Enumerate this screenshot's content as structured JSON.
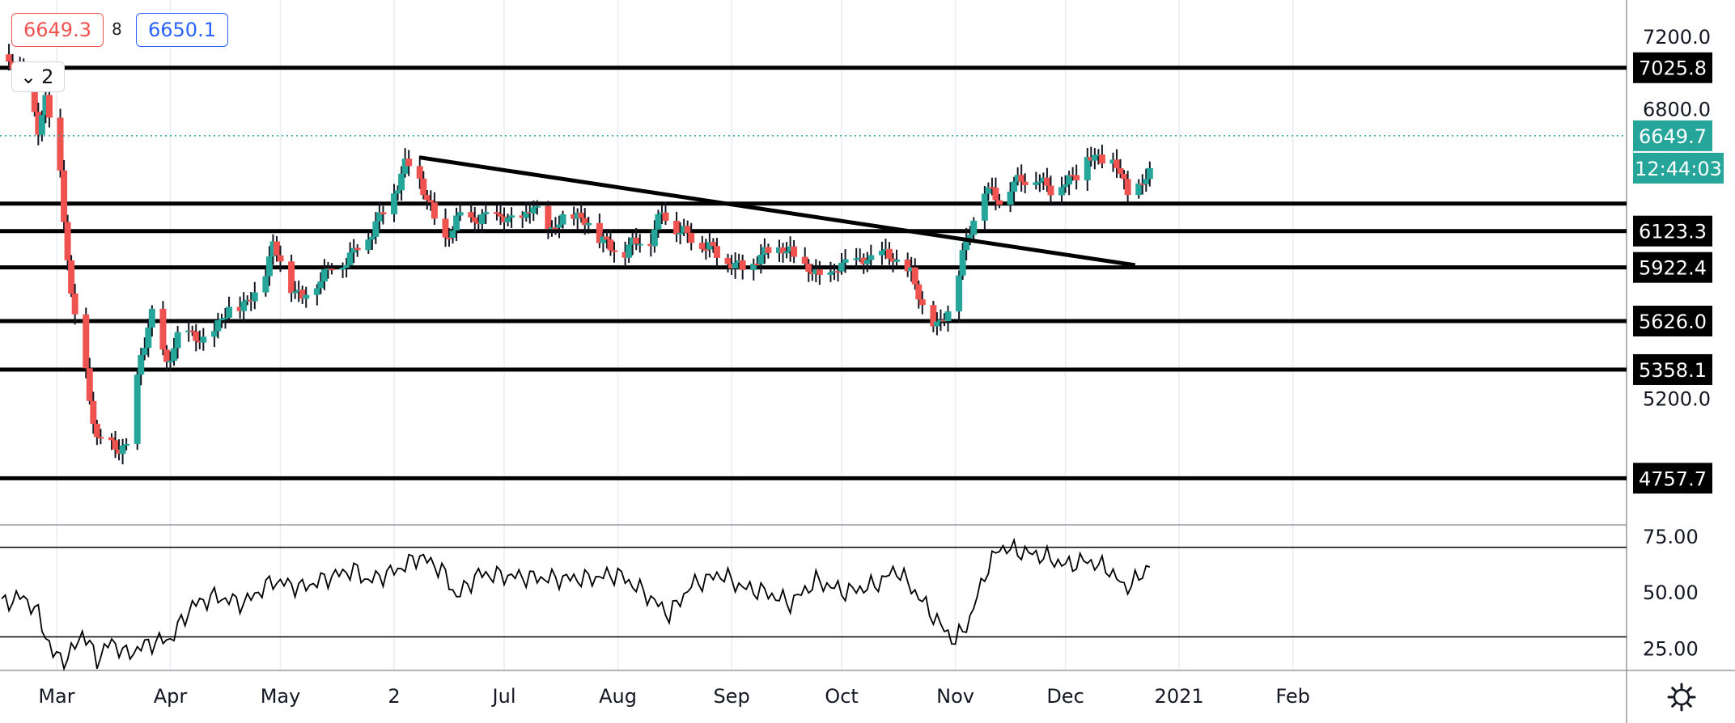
{
  "header": {
    "bid": "6649.3",
    "spread": "8",
    "ask": "6650.1",
    "collapse_label": "2"
  },
  "chart_data": [
    {
      "type": "candlestick",
      "price_axis_labels": [
        "7200.0",
        "6800.0",
        "5200.0"
      ],
      "price_range": [
        4500,
        7400
      ],
      "last_price": "6649.7",
      "countdown": "12:44:03",
      "horizontal_levels": [
        "7025.8",
        "6123.3",
        "5922.4",
        "5626.0",
        "5358.1",
        "4757.7"
      ],
      "highlight_color": "#26a69a",
      "up_color": "#26a69a",
      "down_color": "#ef5350",
      "trendline": {
        "from": [
          "2020-06-08",
          6530
        ],
        "to": [
          "2020-12-20",
          5935
        ]
      },
      "time_axis_labels": [
        "Mar",
        "Apr",
        "May",
        "2",
        "Jul",
        "Aug",
        "Sep",
        "Oct",
        "Nov",
        "Dec",
        "2021",
        "Feb"
      ]
    },
    {
      "type": "line",
      "axis_labels": [
        "75.00",
        "50.00",
        "25.00"
      ],
      "value_range": [
        15,
        80
      ],
      "guide_levels": [
        70,
        30
      ]
    }
  ]
}
